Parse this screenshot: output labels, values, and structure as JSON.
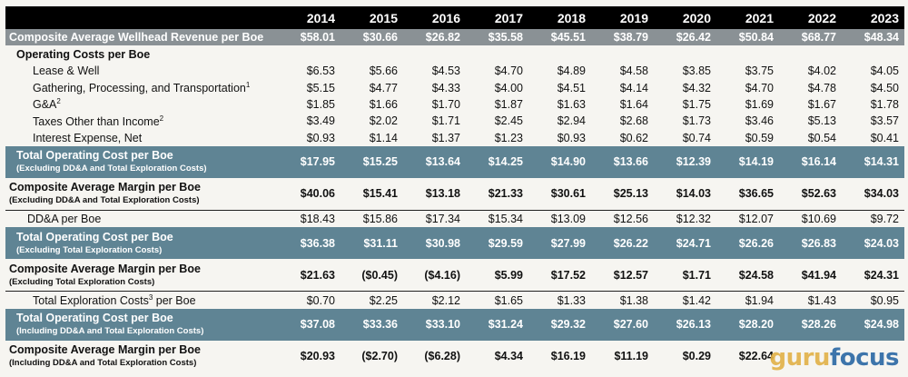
{
  "years": [
    "2014",
    "2015",
    "2016",
    "2017",
    "2018",
    "2019",
    "2020",
    "2021",
    "2022",
    "2023"
  ],
  "revenue": {
    "label": "Composite Average Wellhead Revenue per Boe",
    "values": [
      "$58.01",
      "$30.66",
      "$26.82",
      "$35.58",
      "$45.51",
      "$38.79",
      "$26.42",
      "$50.84",
      "$68.77",
      "$48.34"
    ]
  },
  "operating_header": "Operating Costs per Boe",
  "items": [
    {
      "label": "Lease & Well",
      "sup": "",
      "values": [
        "$6.53",
        "$5.66",
        "$4.53",
        "$4.70",
        "$4.89",
        "$4.58",
        "$3.85",
        "$3.75",
        "$4.02",
        "$4.05"
      ]
    },
    {
      "label": "Gathering, Processing, and Transportation",
      "sup": "1",
      "values": [
        "$5.15",
        "$4.77",
        "$4.33",
        "$4.00",
        "$4.51",
        "$4.14",
        "$4.32",
        "$4.70",
        "$4.78",
        "$4.50"
      ]
    },
    {
      "label": "G&A",
      "sup": "2",
      "values": [
        "$1.85",
        "$1.66",
        "$1.70",
        "$1.87",
        "$1.63",
        "$1.64",
        "$1.75",
        "$1.69",
        "$1.67",
        "$1.78"
      ]
    },
    {
      "label": "Taxes Other than Income",
      "sup": "2",
      "values": [
        "$3.49",
        "$2.02",
        "$1.71",
        "$2.45",
        "$2.94",
        "$2.68",
        "$1.73",
        "$3.46",
        "$5.13",
        "$3.57"
      ]
    },
    {
      "label": "Interest Expense, Net",
      "sup": "",
      "values": [
        "$0.93",
        "$1.14",
        "$1.37",
        "$1.23",
        "$0.93",
        "$0.62",
        "$0.74",
        "$0.59",
        "$0.54",
        "$0.41"
      ]
    }
  ],
  "total1": {
    "label": "Total Operating Cost per Boe",
    "sub": "(Excluding DD&A and Total Exploration Costs)",
    "values": [
      "$17.95",
      "$15.25",
      "$13.64",
      "$14.25",
      "$14.90",
      "$13.66",
      "$12.39",
      "$14.19",
      "$16.14",
      "$14.31"
    ]
  },
  "margin1": {
    "label": "Composite Average Margin per Boe",
    "sub": "(Excluding DD&A and Total Exploration Costs)",
    "values": [
      "$40.06",
      "$15.41",
      "$13.18",
      "$21.33",
      "$30.61",
      "$25.13",
      "$14.03",
      "$36.65",
      "$52.63",
      "$34.03"
    ]
  },
  "dda": {
    "label": "DD&A per Boe",
    "values": [
      "$18.43",
      "$15.86",
      "$17.34",
      "$15.34",
      "$13.09",
      "$12.56",
      "$12.32",
      "$12.07",
      "$10.69",
      "$9.72"
    ]
  },
  "total2": {
    "label": "Total Operating Cost per Boe",
    "sub": "(Excluding Total Exploration Costs)",
    "values": [
      "$36.38",
      "$31.11",
      "$30.98",
      "$29.59",
      "$27.99",
      "$26.22",
      "$24.71",
      "$26.26",
      "$26.83",
      "$24.03"
    ]
  },
  "margin2": {
    "label": "Composite Average Margin per Boe",
    "sub": "(Excluding Total Exploration Costs)",
    "values": [
      "$21.63",
      "($0.45)",
      "($4.16)",
      "$5.99",
      "$17.52",
      "$12.57",
      "$1.71",
      "$24.58",
      "$41.94",
      "$24.31"
    ]
  },
  "exploration": {
    "label_pre": "Total Exploration Costs",
    "sup": "3",
    "label_post": " per Boe",
    "values": [
      "$0.70",
      "$2.25",
      "$2.12",
      "$1.65",
      "$1.33",
      "$1.38",
      "$1.42",
      "$1.94",
      "$1.43",
      "$0.95"
    ]
  },
  "total3": {
    "label": "Total Operating Cost per Boe",
    "sub": "(Including DD&A and Total Exploration Costs)",
    "values": [
      "$37.08",
      "$33.36",
      "$33.10",
      "$31.24",
      "$29.32",
      "$27.60",
      "$26.13",
      "$28.20",
      "$28.26",
      "$24.98"
    ]
  },
  "margin3": {
    "label": "Composite Average Margin per Boe",
    "sub": "(Including DD&A and Total Exploration Costs)",
    "values": [
      "$20.93",
      "($2.70)",
      "($6.28)",
      "$4.34",
      "$16.19",
      "$11.19",
      "$0.29",
      "$22.64",
      "",
      ""
    ]
  },
  "watermark": {
    "part1": "guru",
    "part2": "focus"
  },
  "colors": {
    "header_bg": "#000000",
    "revenue_bg": "#8a9195",
    "band_bg": "#5f8494"
  }
}
